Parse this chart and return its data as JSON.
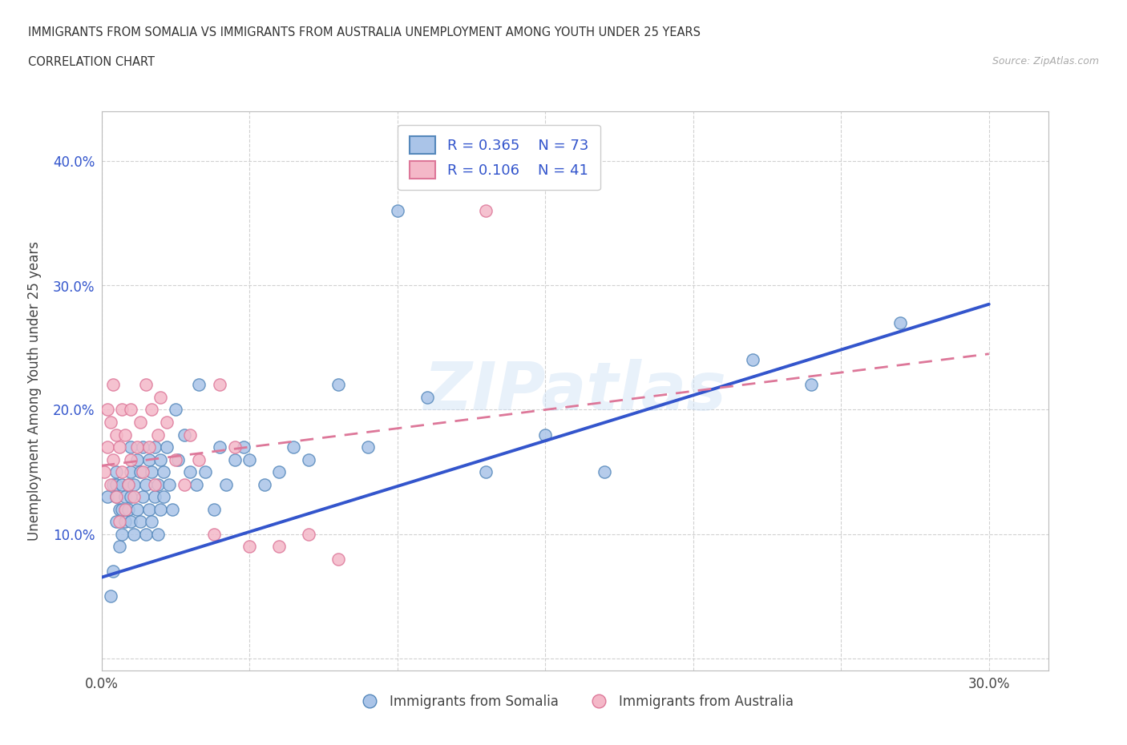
{
  "title_line1": "IMMIGRANTS FROM SOMALIA VS IMMIGRANTS FROM AUSTRALIA UNEMPLOYMENT AMONG YOUTH UNDER 25 YEARS",
  "title_line2": "CORRELATION CHART",
  "source": "Source: ZipAtlas.com",
  "ylabel": "Unemployment Among Youth under 25 years",
  "xlim": [
    0.0,
    0.32
  ],
  "ylim": [
    -0.01,
    0.44
  ],
  "xticks": [
    0.0,
    0.05,
    0.1,
    0.15,
    0.2,
    0.25,
    0.3
  ],
  "xtick_labels": [
    "0.0%",
    "",
    "",
    "",
    "",
    "",
    "30.0%"
  ],
  "ytick_positions": [
    0.0,
    0.1,
    0.2,
    0.3,
    0.4
  ],
  "ytick_labels": [
    "",
    "10.0%",
    "20.0%",
    "30.0%",
    "40.0%"
  ],
  "grid_color": "#cccccc",
  "background_color": "#ffffff",
  "somalia_color": "#aac4e8",
  "somalia_edge_color": "#5588bb",
  "australia_color": "#f4b8c8",
  "australia_edge_color": "#dd7799",
  "somalia_line_color": "#3355cc",
  "australia_line_color": "#dd7799",
  "watermark": "ZIPatlas",
  "legend_R_somalia": "0.365",
  "legend_N_somalia": "73",
  "legend_R_australia": "0.106",
  "legend_N_australia": "41",
  "somalia_scatter_x": [
    0.002,
    0.003,
    0.004,
    0.004,
    0.005,
    0.005,
    0.005,
    0.005,
    0.006,
    0.006,
    0.007,
    0.007,
    0.007,
    0.008,
    0.008,
    0.009,
    0.009,
    0.01,
    0.01,
    0.01,
    0.01,
    0.011,
    0.011,
    0.012,
    0.012,
    0.013,
    0.013,
    0.014,
    0.014,
    0.015,
    0.015,
    0.016,
    0.016,
    0.017,
    0.017,
    0.018,
    0.018,
    0.019,
    0.019,
    0.02,
    0.02,
    0.021,
    0.021,
    0.022,
    0.023,
    0.024,
    0.025,
    0.026,
    0.028,
    0.03,
    0.032,
    0.033,
    0.035,
    0.038,
    0.04,
    0.042,
    0.045,
    0.048,
    0.05,
    0.055,
    0.06,
    0.065,
    0.07,
    0.08,
    0.09,
    0.1,
    0.11,
    0.13,
    0.15,
    0.17,
    0.22,
    0.24,
    0.27
  ],
  "somalia_scatter_y": [
    0.13,
    0.05,
    0.07,
    0.14,
    0.11,
    0.13,
    0.14,
    0.15,
    0.09,
    0.12,
    0.1,
    0.12,
    0.14,
    0.11,
    0.13,
    0.12,
    0.14,
    0.11,
    0.13,
    0.15,
    0.17,
    0.1,
    0.14,
    0.12,
    0.16,
    0.11,
    0.15,
    0.13,
    0.17,
    0.1,
    0.14,
    0.12,
    0.16,
    0.11,
    0.15,
    0.13,
    0.17,
    0.1,
    0.14,
    0.12,
    0.16,
    0.13,
    0.15,
    0.17,
    0.14,
    0.12,
    0.2,
    0.16,
    0.18,
    0.15,
    0.14,
    0.22,
    0.15,
    0.12,
    0.17,
    0.14,
    0.16,
    0.17,
    0.16,
    0.14,
    0.15,
    0.17,
    0.16,
    0.22,
    0.17,
    0.36,
    0.21,
    0.15,
    0.18,
    0.15,
    0.24,
    0.22,
    0.27
  ],
  "australia_scatter_x": [
    0.001,
    0.002,
    0.002,
    0.003,
    0.003,
    0.004,
    0.004,
    0.005,
    0.005,
    0.006,
    0.006,
    0.007,
    0.007,
    0.008,
    0.008,
    0.009,
    0.01,
    0.01,
    0.011,
    0.012,
    0.013,
    0.014,
    0.015,
    0.016,
    0.017,
    0.018,
    0.019,
    0.02,
    0.022,
    0.025,
    0.028,
    0.03,
    0.033,
    0.038,
    0.04,
    0.045,
    0.05,
    0.06,
    0.07,
    0.08,
    0.13
  ],
  "australia_scatter_y": [
    0.15,
    0.17,
    0.2,
    0.14,
    0.19,
    0.16,
    0.22,
    0.13,
    0.18,
    0.11,
    0.17,
    0.15,
    0.2,
    0.12,
    0.18,
    0.14,
    0.16,
    0.2,
    0.13,
    0.17,
    0.19,
    0.15,
    0.22,
    0.17,
    0.2,
    0.14,
    0.18,
    0.21,
    0.19,
    0.16,
    0.14,
    0.18,
    0.16,
    0.1,
    0.22,
    0.17,
    0.09,
    0.09,
    0.1,
    0.08,
    0.36
  ],
  "somalia_trend_x": [
    0.0,
    0.3
  ],
  "somalia_trend_y": [
    0.065,
    0.285
  ],
  "australia_trend_x": [
    0.0,
    0.3
  ],
  "australia_trend_y": [
    0.155,
    0.245
  ]
}
